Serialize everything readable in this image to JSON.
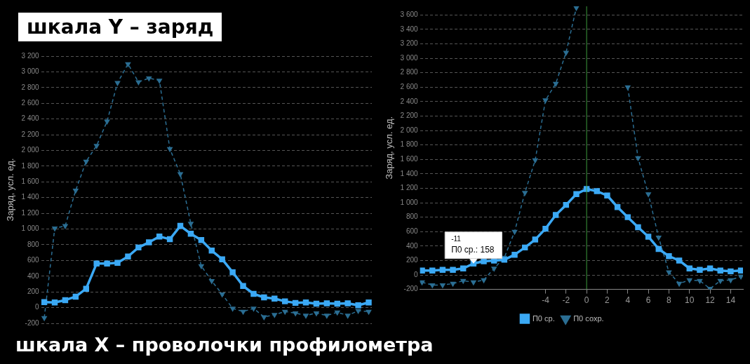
{
  "chart_data": [
    {
      "type": "line",
      "ylabel": "Заряд, усл. ед.",
      "annotations": [
        "шкала Y – заряд",
        "шкала X – проволочки профилометра"
      ],
      "categories": [
        null,
        null,
        null,
        null,
        null,
        null,
        null,
        null,
        null,
        null,
        null,
        null,
        null,
        null,
        null,
        null,
        null,
        null,
        null,
        null,
        null,
        null,
        null,
        null,
        null,
        null,
        null,
        null,
        null,
        null,
        null,
        null
      ],
      "ylim": [
        -200,
        3200
      ],
      "yticks": [
        {
          "value": -200,
          "label": "-200"
        },
        0,
        200,
        400,
        600,
        800,
        {
          "value": 1000,
          "label": "1 000"
        },
        {
          "value": 1200,
          "label": "1 200"
        },
        {
          "value": 1400,
          "label": "1 400"
        },
        {
          "value": 1600,
          "label": "1 600"
        },
        {
          "value": 1800,
          "label": "1 800"
        },
        {
          "value": 2000,
          "label": "2 000"
        },
        {
          "value": 2200,
          "label": "2 200"
        },
        {
          "value": 2400,
          "label": "2 400"
        },
        {
          "value": 2600,
          "label": "2 600"
        },
        {
          "value": 2800,
          "label": "2 800"
        },
        {
          "value": 3000,
          "label": "3 000"
        },
        {
          "value": 3200,
          "label": "3 200"
        }
      ],
      "tick_labels": "y",
      "grid": "y",
      "legend": false,
      "series": [
        {
          "color": "#3ba9f5",
          "marker": "square",
          "line_style": "solid",
          "values": [
            70,
            65,
            95,
            140,
            240,
            560,
            560,
            570,
            650,
            765,
            830,
            905,
            870,
            1040,
            940,
            860,
            725,
            615,
            450,
            275,
            175,
            130,
            115,
            80,
            60,
            65,
            50,
            55,
            50,
            55,
            30,
            65
          ]
        },
        {
          "color": "#2b6e93",
          "marker": "triangle",
          "line_style": "dashed",
          "values": [
            -130,
            1010,
            1040,
            1490,
            1860,
            2060,
            2370,
            2860,
            3100,
            2870,
            2920,
            2890,
            2020,
            1700,
            1070,
            530,
            340,
            170,
            -10,
            -50,
            -10,
            -120,
            -90,
            -50,
            -70,
            -100,
            -70,
            -100,
            -60,
            -100,
            -40,
            -50
          ]
        }
      ]
    },
    {
      "type": "line",
      "ylabel": "Заряд, усл. ед.",
      "x": [
        -16,
        -15,
        -14,
        -13,
        -12,
        -11,
        -10,
        -9,
        -8,
        -7,
        -6,
        -5,
        -4,
        -3,
        -2,
        -1,
        0,
        1,
        2,
        3,
        4,
        5,
        6,
        7,
        8,
        9,
        10,
        11,
        12,
        13,
        14,
        15
      ],
      "xlim": [
        -16.2,
        15.2
      ],
      "xticks": [
        -4,
        -2,
        0,
        2,
        4,
        6,
        8,
        10,
        12,
        14
      ],
      "ylim": [
        -200,
        3720
      ],
      "yticks": [
        {
          "value": -200,
          "label": "-200"
        },
        0,
        200,
        400,
        600,
        800,
        {
          "value": 1000,
          "label": "1 000"
        },
        {
          "value": 1200,
          "label": "1 200"
        },
        {
          "value": 1400,
          "label": "1 400"
        },
        {
          "value": 1600,
          "label": "1 600"
        },
        {
          "value": 1800,
          "label": "1 800"
        },
        {
          "value": 2000,
          "label": "2 000"
        },
        {
          "value": 2200,
          "label": "2 200"
        },
        {
          "value": 2400,
          "label": "2 400"
        },
        {
          "value": 2600,
          "label": "2 600"
        },
        {
          "value": 2800,
          "label": "2 800"
        },
        {
          "value": 3000,
          "label": "3 000"
        },
        {
          "value": 3200,
          "label": "3 200"
        },
        {
          "value": 3400,
          "label": "3 400"
        },
        {
          "value": 3600,
          "label": "3 600"
        }
      ],
      "grid": "y",
      "legend": "bottom",
      "ref_lines": [
        {
          "axis": "x",
          "value": 0,
          "color": "#3d9a3d"
        }
      ],
      "annotations": [
        "-11",
        {
          "text": "П0 ср.: 158",
          "x": -11,
          "y": 158
        }
      ],
      "series": [
        {
          "name": "П0 ср.",
          "color": "#3ba9f5",
          "marker": "square",
          "line_style": "solid",
          "values": [
            60,
            60,
            70,
            70,
            90,
            158,
            190,
            200,
            210,
            280,
            380,
            490,
            640,
            830,
            970,
            1120,
            1190,
            1160,
            1100,
            940,
            800,
            660,
            530,
            360,
            260,
            200,
            90,
            70,
            90,
            60,
            50,
            60
          ]
        },
        {
          "name": "П0 сохр.",
          "color": "#2b6e93",
          "marker": "triangle",
          "line_style": "dashed",
          "values": [
            -100,
            -140,
            -140,
            -120,
            -80,
            -100,
            -70,
            90,
            240,
            600,
            1140,
            1590,
            2420,
            2650,
            3080,
            3700,
            null,
            null,
            null,
            null,
            2600,
            1620,
            1120,
            520,
            40,
            -120,
            -70,
            -80,
            -190,
            -80,
            -70,
            -20
          ]
        }
      ]
    }
  ]
}
